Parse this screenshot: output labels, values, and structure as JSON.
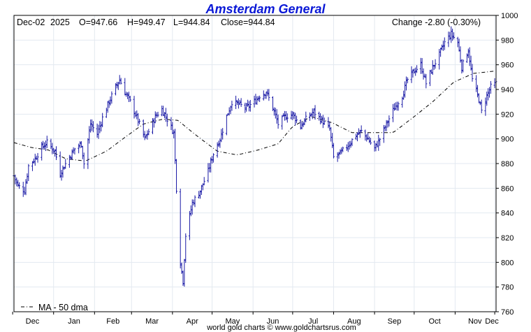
{
  "header": {
    "title": "Amsterdam General",
    "date": "Dec-02",
    "year": "2025",
    "open": "O=947.66",
    "high": "H=949.47",
    "low": "L=944.84",
    "close": "Close=944.84",
    "change": "Change -2.80 (-0.30%)"
  },
  "legend": {
    "ma_label": "MA - 50 dma"
  },
  "footer": {
    "credit": "world gold charts © www.goldchartsrus.com"
  },
  "colors": {
    "bars": "#1a1aa6",
    "ma": "#000000",
    "grid": "#e3e9f0",
    "title": "#0a18d6"
  },
  "chart_data": {
    "type": "ohlc",
    "ylim": [
      760,
      1000
    ],
    "y_ticks": [
      760,
      780,
      800,
      820,
      840,
      860,
      880,
      900,
      920,
      940,
      960,
      980,
      1000
    ],
    "x_ticks": [
      "Dec",
      "Jan",
      "Feb",
      "Mar",
      "Apr",
      "May",
      "Jun",
      "Jul",
      "Aug",
      "Sep",
      "Oct",
      "Nov",
      "Dec"
    ],
    "grid": true,
    "x_start": "2024-12-02",
    "x_end": "2025-12-02",
    "close_series": [
      [
        "2024-12-02",
        870
      ],
      [
        "2024-12-05",
        862
      ],
      [
        "2024-12-10",
        858
      ],
      [
        "2024-12-13",
        878
      ],
      [
        "2024-12-18",
        884
      ],
      [
        "2024-12-23",
        893
      ],
      [
        "2024-12-27",
        897
      ],
      [
        "2025-01-02",
        890
      ],
      [
        "2025-01-06",
        872
      ],
      [
        "2025-01-09",
        878
      ],
      [
        "2025-01-14",
        887
      ],
      [
        "2025-01-17",
        892
      ],
      [
        "2025-01-22",
        896
      ],
      [
        "2025-01-24",
        880
      ],
      [
        "2025-01-29",
        912
      ],
      [
        "2025-02-03",
        904
      ],
      [
        "2025-02-07",
        917
      ],
      [
        "2025-02-12",
        930
      ],
      [
        "2025-02-17",
        942
      ],
      [
        "2025-02-20",
        948
      ],
      [
        "2025-02-24",
        938
      ],
      [
        "2025-02-28",
        930
      ],
      [
        "2025-03-04",
        920
      ],
      [
        "2025-03-07",
        912
      ],
      [
        "2025-03-11",
        900
      ],
      [
        "2025-03-14",
        906
      ],
      [
        "2025-03-19",
        918
      ],
      [
        "2025-03-24",
        924
      ],
      [
        "2025-03-28",
        916
      ],
      [
        "2025-04-02",
        905
      ],
      [
        "2025-04-04",
        860
      ],
      [
        "2025-04-07",
        800
      ],
      [
        "2025-04-09",
        785
      ],
      [
        "2025-04-11",
        822
      ],
      [
        "2025-04-16",
        848
      ],
      [
        "2025-04-22",
        858
      ],
      [
        "2025-04-28",
        874
      ],
      [
        "2025-05-02",
        888
      ],
      [
        "2025-05-07",
        900
      ],
      [
        "2025-05-12",
        918
      ],
      [
        "2025-05-16",
        930
      ],
      [
        "2025-05-21",
        928
      ],
      [
        "2025-05-27",
        925
      ],
      [
        "2025-06-02",
        930
      ],
      [
        "2025-06-06",
        935
      ],
      [
        "2025-06-11",
        938
      ],
      [
        "2025-06-16",
        925
      ],
      [
        "2025-06-20",
        912
      ],
      [
        "2025-06-25",
        918
      ],
      [
        "2025-07-01",
        920
      ],
      [
        "2025-07-07",
        910
      ],
      [
        "2025-07-11",
        916
      ],
      [
        "2025-07-17",
        922
      ],
      [
        "2025-07-23",
        915
      ],
      [
        "2025-07-29",
        908
      ],
      [
        "2025-08-01",
        885
      ],
      [
        "2025-08-06",
        888
      ],
      [
        "2025-08-12",
        895
      ],
      [
        "2025-08-18",
        903
      ],
      [
        "2025-08-22",
        906
      ],
      [
        "2025-08-27",
        900
      ],
      [
        "2025-09-01",
        892
      ],
      [
        "2025-09-05",
        900
      ],
      [
        "2025-09-10",
        912
      ],
      [
        "2025-09-16",
        925
      ],
      [
        "2025-09-22",
        935
      ],
      [
        "2025-09-26",
        948
      ],
      [
        "2025-10-01",
        955
      ],
      [
        "2025-10-06",
        960
      ],
      [
        "2025-10-10",
        945
      ],
      [
        "2025-10-15",
        958
      ],
      [
        "2025-10-20",
        968
      ],
      [
        "2025-10-24",
        978
      ],
      [
        "2025-10-29",
        985
      ],
      [
        "2025-11-03",
        978
      ],
      [
        "2025-11-06",
        958
      ],
      [
        "2025-11-11",
        972
      ],
      [
        "2025-11-14",
        948
      ],
      [
        "2025-11-19",
        932
      ],
      [
        "2025-11-21",
        922
      ],
      [
        "2025-11-25",
        935
      ],
      [
        "2025-11-28",
        942
      ],
      [
        "2025-12-02",
        944.84
      ]
    ],
    "ma_series": [
      [
        "2024-12-02",
        897
      ],
      [
        "2024-12-15",
        893
      ],
      [
        "2024-12-28",
        891
      ],
      [
        "2025-01-10",
        884
      ],
      [
        "2025-01-25",
        882
      ],
      [
        "2025-02-10",
        890
      ],
      [
        "2025-02-25",
        902
      ],
      [
        "2025-03-10",
        912
      ],
      [
        "2025-03-25",
        916
      ],
      [
        "2025-04-05",
        915
      ],
      [
        "2025-04-20",
        902
      ],
      [
        "2025-05-05",
        890
      ],
      [
        "2025-05-20",
        887
      ],
      [
        "2025-06-05",
        891
      ],
      [
        "2025-06-20",
        896
      ],
      [
        "2025-07-01",
        910
      ],
      [
        "2025-07-15",
        918
      ],
      [
        "2025-07-31",
        913
      ],
      [
        "2025-08-15",
        905
      ],
      [
        "2025-09-01",
        905
      ],
      [
        "2025-09-15",
        905
      ],
      [
        "2025-10-01",
        918
      ],
      [
        "2025-10-15",
        930
      ],
      [
        "2025-10-31",
        946
      ],
      [
        "2025-11-15",
        953
      ],
      [
        "2025-12-02",
        955
      ]
    ]
  }
}
